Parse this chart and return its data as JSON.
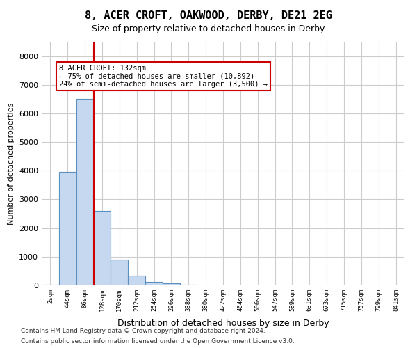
{
  "title": "8, ACER CROFT, OAKWOOD, DERBY, DE21 2EG",
  "subtitle": "Size of property relative to detached houses in Derby",
  "xlabel": "Distribution of detached houses by size in Derby",
  "ylabel": "Number of detached properties",
  "categories": [
    "2sqm",
    "44sqm",
    "86sqm",
    "128sqm",
    "170sqm",
    "212sqm",
    "254sqm",
    "296sqm",
    "338sqm",
    "380sqm",
    "422sqm",
    "464sqm",
    "506sqm",
    "547sqm",
    "589sqm",
    "631sqm",
    "673sqm",
    "715sqm",
    "757sqm",
    "799sqm",
    "841sqm"
  ],
  "values": [
    30,
    3950,
    6500,
    2600,
    900,
    350,
    130,
    80,
    30,
    0,
    0,
    0,
    0,
    0,
    0,
    0,
    0,
    0,
    0,
    0,
    0
  ],
  "bar_color": "#c5d8f0",
  "bar_edge_color": "#5a8fc0",
  "bar_width": 1.0,
  "ylim": [
    0,
    8500
  ],
  "yticks": [
    0,
    1000,
    2000,
    3000,
    4000,
    5000,
    6000,
    7000,
    8000
  ],
  "property_line_x": 2.5,
  "property_line_color": "#cc0000",
  "annotation_text": "8 ACER CROFT: 132sqm\n← 75% of detached houses are smaller (10,892)\n24% of semi-detached houses are larger (3,500) →",
  "annotation_box_color": "#ffffff",
  "annotation_box_edge": "#cc0000",
  "grid_color": "#cccccc",
  "background_color": "#ffffff",
  "footer_line1": "Contains HM Land Registry data © Crown copyright and database right 2024.",
  "footer_line2": "Contains public sector information licensed under the Open Government Licence v3.0."
}
